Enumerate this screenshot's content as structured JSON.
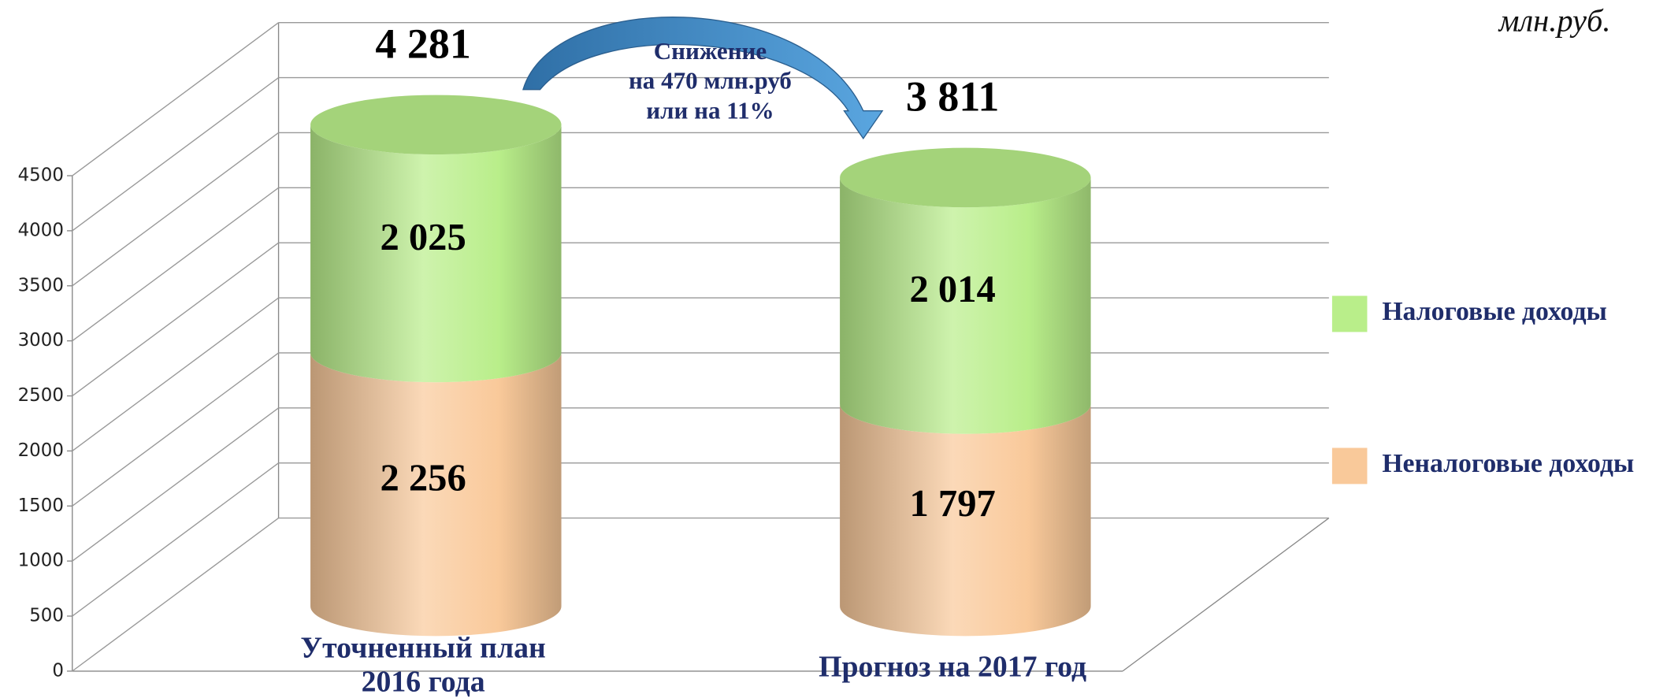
{
  "chart_data": {
    "type": "stacked_cylinder",
    "unit": "млн.руб.",
    "categories": [
      "Уточненный план 2016 года",
      "Прогноз на 2017 год"
    ],
    "series": [
      {
        "name": "Неналоговые доходы",
        "color": "#f9c99a",
        "values": [
          2256,
          1797
        ],
        "value_labels": [
          "2 256",
          "1 797"
        ]
      },
      {
        "name": "Налоговые доходы",
        "color": "#b9ee8a",
        "values": [
          2025,
          2014
        ],
        "value_labels": [
          "2 025",
          "2 014"
        ]
      }
    ],
    "totals": [
      4281,
      3811
    ],
    "total_labels": [
      "4 281",
      "3 811"
    ],
    "annotation": [
      "Снижение",
      "на 470 млн.руб",
      "или на 11%"
    ],
    "ylim": [
      0,
      4500
    ],
    "yticks": [
      0,
      500,
      1000,
      1500,
      2000,
      2500,
      3000,
      3500,
      4000,
      4500
    ],
    "grid": true
  }
}
